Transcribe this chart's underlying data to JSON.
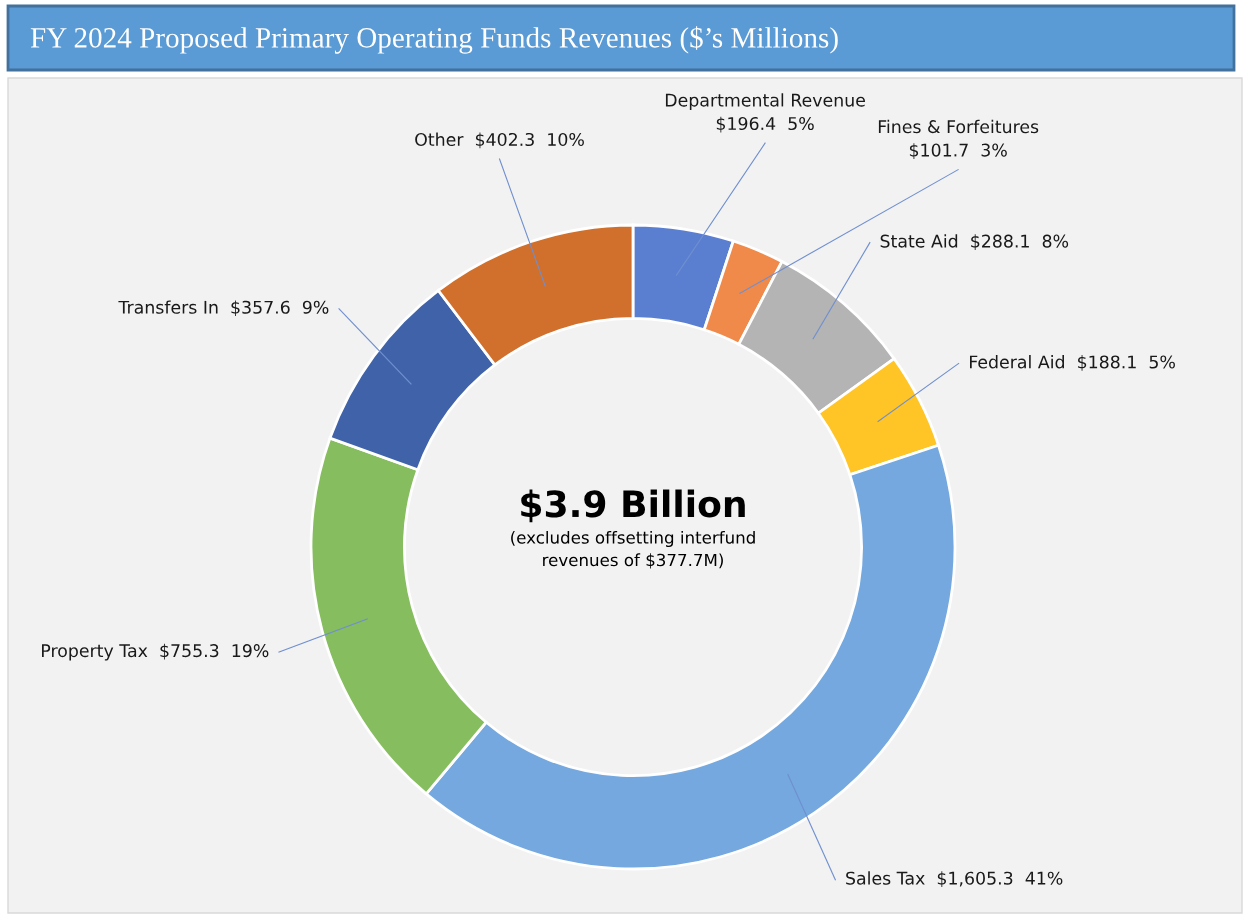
{
  "chart_data": {
    "type": "donut",
    "title": "FY 2024 Proposed Primary Operating Funds Revenues ($’s Millions)",
    "categories": [
      "Departmental Revenue",
      "Fines & Forfeitures",
      "State Aid",
      "Federal Aid",
      "Sales Tax",
      "Property Tax",
      "Transfers In",
      "Other"
    ],
    "values": [
      196.4,
      101.7,
      288.1,
      188.1,
      1605.3,
      755.3,
      357.6,
      402.3
    ],
    "value_labels": [
      "$196.4  5%",
      "$101.7  3%",
      "$288.1  8%",
      "$188.1  5%",
      "$1,605.3  41%",
      "$755.3  19%",
      "$357.6  9%",
      "$402.3  10%"
    ],
    "colors": [
      "#5b7fd0",
      "#f08a4b",
      "#b4b4b4",
      "#ffc425",
      "#74a8de",
      "#86bd5e",
      "#3f62a8",
      "#d0702c"
    ],
    "annotations": [
      "$3.9 Billion",
      "(excludes offsetting interfund\nrevenues of $377.7M)"
    ]
  }
}
